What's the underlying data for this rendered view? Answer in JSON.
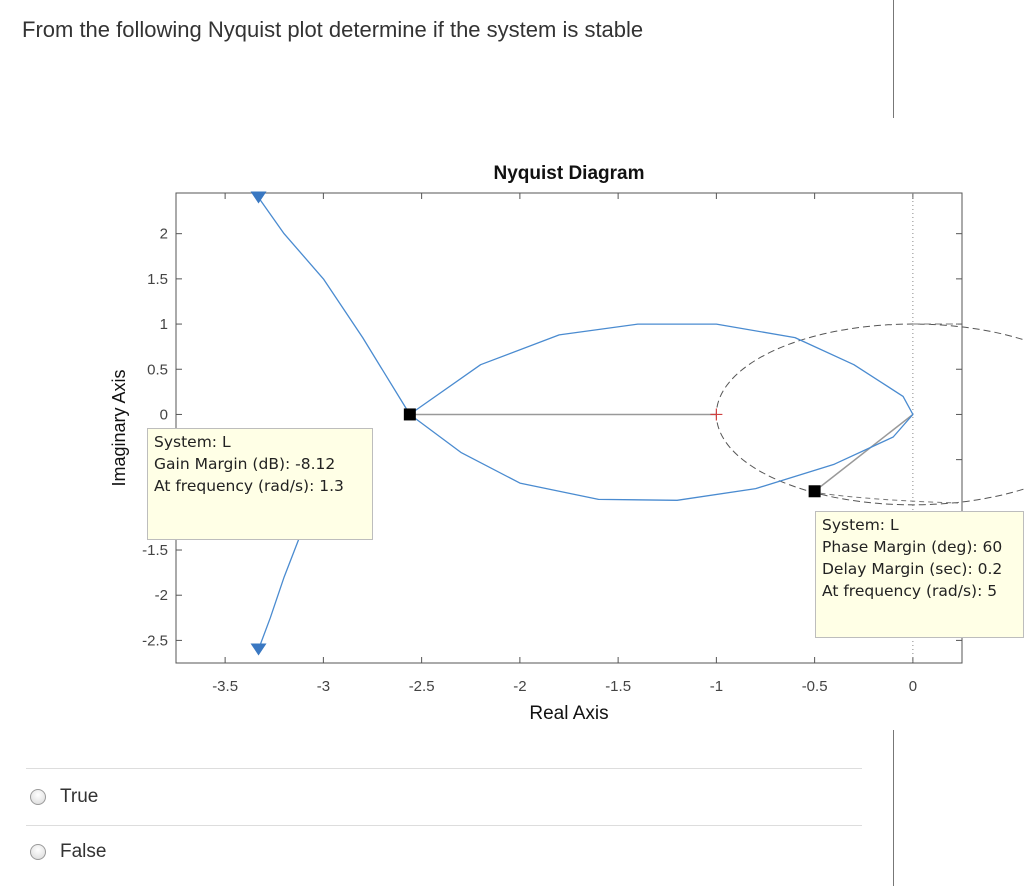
{
  "question": "From the following Nyquist plot determine if the system is stable",
  "chart_data": {
    "type": "line",
    "title": "Nyquist Diagram",
    "xlabel": "Real Axis",
    "ylabel": "Imaginary Axis",
    "xlim": [
      -3.75,
      0.25
    ],
    "ylim": [
      -2.75,
      2.45
    ],
    "xticks": [
      "-3.5",
      "-3",
      "-2.5",
      "-2",
      "-1.5",
      "-1",
      "-0.5",
      "0"
    ],
    "yticks": [
      "2",
      "1.5",
      "1",
      "0.5",
      "0",
      "-0",
      "-1.5",
      "-2",
      "-2.5"
    ],
    "series": [
      {
        "color": "#4a8bd0",
        "points": [
          [
            -3.33,
            2.4
          ],
          [
            -3.2,
            2.0
          ],
          [
            -3.0,
            1.5
          ],
          [
            -2.8,
            0.85
          ],
          [
            -2.56,
            0.0
          ],
          [
            -2.2,
            0.55
          ],
          [
            -1.8,
            0.88
          ],
          [
            -1.4,
            1.0
          ],
          [
            -1.0,
            1.0
          ],
          [
            -0.6,
            0.85
          ],
          [
            -0.3,
            0.55
          ],
          [
            -0.05,
            0.2
          ],
          [
            0.0,
            0.0
          ],
          [
            -0.1,
            -0.25
          ],
          [
            -0.4,
            -0.55
          ],
          [
            -0.8,
            -0.82
          ],
          [
            -1.2,
            -0.95
          ],
          [
            -1.6,
            -0.94
          ],
          [
            -2.0,
            -0.76
          ],
          [
            -2.3,
            -0.42
          ],
          [
            -2.56,
            0.0
          ]
        ]
      },
      {
        "color": "#4a8bd0",
        "points": [
          [
            -3.05,
            -1.05
          ],
          [
            -3.12,
            -1.35
          ],
          [
            -3.2,
            -1.8
          ],
          [
            -3.27,
            -2.25
          ],
          [
            -3.33,
            -2.6
          ]
        ]
      }
    ],
    "unit_circle": {
      "color": "#555555"
    },
    "markers": [
      {
        "x": -2.56,
        "y": 0.0,
        "label": "gain-margin-point"
      },
      {
        "x": -0.5,
        "y": -0.85,
        "label": "phase-margin-point"
      }
    ],
    "critical_point": {
      "x": -1,
      "y": 0,
      "color": "#d04040"
    },
    "line_color": "#999999",
    "datatips": [
      {
        "lines": [
          "System: L",
          "Gain Margin (dB): -8.12",
          "At frequency (rad/s): 1.3"
        ]
      },
      {
        "lines": [
          "System: L",
          "Phase Margin (deg): 60",
          "Delay Margin (sec): 0.2",
          "At frequency (rad/s): 5"
        ]
      }
    ]
  },
  "options": [
    {
      "label": "True"
    },
    {
      "label": "False"
    }
  ]
}
